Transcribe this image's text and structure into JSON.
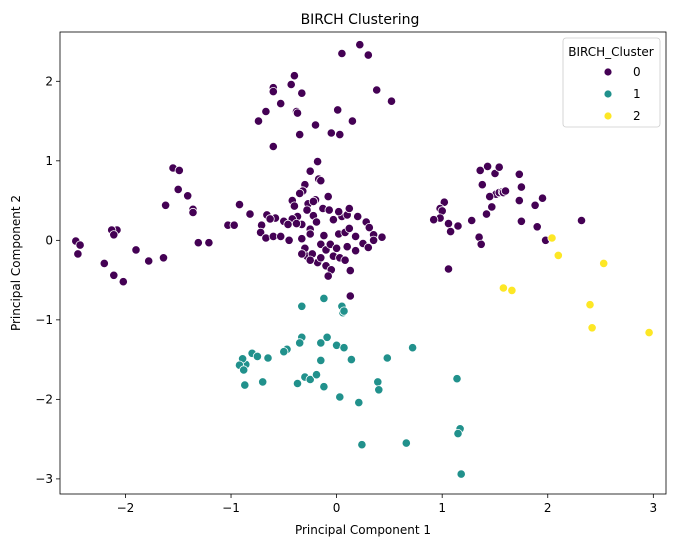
{
  "chart_data": {
    "type": "scatter",
    "title": "BIRCH Clustering",
    "xlabel": "Principal Component 1",
    "ylabel": "Principal Component 2",
    "xlim": [
      -2.62,
      3.12
    ],
    "ylim": [
      -3.19,
      2.62
    ],
    "xticks": [
      -2,
      -1,
      0,
      1,
      2,
      3
    ],
    "yticks": [
      -3,
      -2,
      -1,
      0,
      1,
      2
    ],
    "grid": false,
    "legend": {
      "title": "BIRCH_Cluster",
      "placement": "top-right"
    },
    "series": [
      {
        "name": "0",
        "color": "#440154",
        "points": [
          [
            0.22,
            2.46
          ],
          [
            0.05,
            2.35
          ],
          [
            0.3,
            2.33
          ],
          [
            -0.4,
            2.07
          ],
          [
            -0.43,
            1.96
          ],
          [
            0.38,
            1.89
          ],
          [
            -0.33,
            1.85
          ],
          [
            0.52,
            1.75
          ],
          [
            -0.6,
            1.92
          ],
          [
            -0.6,
            1.87
          ],
          [
            -0.53,
            1.72
          ],
          [
            -0.67,
            1.62
          ],
          [
            -0.38,
            1.62
          ],
          [
            -0.37,
            1.6
          ],
          [
            0.01,
            1.64
          ],
          [
            -0.74,
            1.5
          ],
          [
            0.15,
            1.5
          ],
          [
            -0.2,
            1.45
          ],
          [
            -0.35,
            1.33
          ],
          [
            -0.05,
            1.35
          ],
          [
            0.03,
            1.33
          ],
          [
            -0.6,
            1.18
          ],
          [
            -0.18,
            0.99
          ],
          [
            -0.25,
            0.87
          ],
          [
            -0.17,
            0.77
          ],
          [
            -0.15,
            0.75
          ],
          [
            -0.3,
            0.7
          ],
          [
            -0.32,
            0.62
          ],
          [
            -0.42,
            0.5
          ],
          [
            -0.27,
            0.46
          ],
          [
            -0.2,
            0.51
          ],
          [
            -0.08,
            0.55
          ],
          [
            -0.28,
            0.38
          ],
          [
            -0.13,
            0.4
          ],
          [
            -0.07,
            0.38
          ],
          [
            -0.37,
            0.3
          ],
          [
            -0.42,
            0.27
          ],
          [
            -0.22,
            0.31
          ],
          [
            -0.58,
            0.28
          ],
          [
            -0.5,
            0.24
          ],
          [
            -0.46,
            0.2
          ],
          [
            -0.33,
            0.2
          ],
          [
            -0.25,
            0.14
          ],
          [
            -0.19,
            0.23
          ],
          [
            -0.03,
            0.26
          ],
          [
            0.05,
            0.3
          ],
          [
            0.1,
            0.32
          ],
          [
            0.2,
            0.3
          ],
          [
            0.28,
            0.23
          ],
          [
            0.31,
            0.16
          ],
          [
            0.35,
            0.07
          ],
          [
            0.43,
            0.04
          ],
          [
            -0.66,
            0.32
          ],
          [
            -0.63,
            0.27
          ],
          [
            -0.71,
            0.19
          ],
          [
            -0.72,
            0.1
          ],
          [
            -0.67,
            0.03
          ],
          [
            -0.6,
            0.05
          ],
          [
            -0.53,
            0.05
          ],
          [
            -0.45,
            0.0
          ],
          [
            -0.33,
            0.02
          ],
          [
            -0.25,
            0.08
          ],
          [
            -0.15,
            -0.05
          ],
          [
            -0.12,
            0.06
          ],
          [
            0.02,
            0.08
          ],
          [
            0.08,
            0.1
          ],
          [
            0.12,
            0.15
          ],
          [
            0.18,
            0.05
          ],
          [
            0.25,
            -0.04
          ],
          [
            0.3,
            -0.09
          ],
          [
            0.35,
            0.0
          ],
          [
            -0.3,
            -0.1
          ],
          [
            -0.28,
            -0.2
          ],
          [
            -0.33,
            -0.17
          ],
          [
            -0.23,
            -0.17
          ],
          [
            -0.18,
            -0.28
          ],
          [
            -0.25,
            -0.25
          ],
          [
            -0.15,
            -0.22
          ],
          [
            -0.1,
            -0.12
          ],
          [
            -0.06,
            -0.05
          ],
          [
            0.0,
            -0.1
          ],
          [
            -0.03,
            -0.2
          ],
          [
            0.03,
            -0.22
          ],
          [
            0.08,
            -0.25
          ],
          [
            -0.1,
            -0.32
          ],
          [
            -0.05,
            -0.37
          ],
          [
            -0.08,
            -0.45
          ],
          [
            0.13,
            -0.38
          ],
          [
            0.18,
            -0.13
          ],
          [
            0.1,
            -0.08
          ],
          [
            -0.82,
            0.33
          ],
          [
            -0.92,
            0.45
          ],
          [
            -0.4,
            0.43
          ],
          [
            -0.35,
            0.59
          ],
          [
            -0.22,
            0.49
          ],
          [
            -0.38,
            0.21
          ],
          [
            0.12,
            0.4
          ],
          [
            0.02,
            0.36
          ],
          [
            -1.55,
            0.91
          ],
          [
            -1.49,
            0.88
          ],
          [
            -1.5,
            0.64
          ],
          [
            -1.41,
            0.56
          ],
          [
            -1.62,
            0.44
          ],
          [
            -1.36,
            0.39
          ],
          [
            -1.36,
            0.35
          ],
          [
            -1.31,
            -0.03
          ],
          [
            -1.21,
            -0.03
          ],
          [
            -1.03,
            0.19
          ],
          [
            -0.97,
            0.19
          ],
          [
            -2.47,
            -0.01
          ],
          [
            -2.43,
            -0.06
          ],
          [
            -2.45,
            -0.17
          ],
          [
            -2.12,
            0.1
          ],
          [
            -2.08,
            0.13
          ],
          [
            -2.13,
            0.13
          ],
          [
            -2.11,
            0.07
          ],
          [
            -2.2,
            -0.29
          ],
          [
            -2.11,
            -0.44
          ],
          [
            -2.02,
            -0.52
          ],
          [
            -1.9,
            -0.12
          ],
          [
            -1.78,
            -0.26
          ],
          [
            -1.64,
            -0.22
          ],
          [
            0.13,
            -0.7
          ],
          [
            1.43,
            0.93
          ],
          [
            1.5,
            0.84
          ],
          [
            1.54,
            0.92
          ],
          [
            1.36,
            0.88
          ],
          [
            1.38,
            0.7
          ],
          [
            1.51,
            0.58
          ],
          [
            1.54,
            0.6
          ],
          [
            1.57,
            0.61
          ],
          [
            1.73,
            0.83
          ],
          [
            1.75,
            0.67
          ],
          [
            1.73,
            0.5
          ],
          [
            1.58,
            0.6
          ],
          [
            1.45,
            0.55
          ],
          [
            1.6,
            0.62
          ],
          [
            1.88,
            0.44
          ],
          [
            1.95,
            0.53
          ],
          [
            1.02,
            0.48
          ],
          [
            0.98,
            0.4
          ],
          [
            1.0,
            0.37
          ],
          [
            0.98,
            0.28
          ],
          [
            0.92,
            0.26
          ],
          [
            1.06,
            0.21
          ],
          [
            1.08,
            0.11
          ],
          [
            1.15,
            0.18
          ],
          [
            1.28,
            0.25
          ],
          [
            1.42,
            0.33
          ],
          [
            1.47,
            0.42
          ],
          [
            1.75,
            0.24
          ],
          [
            1.9,
            0.17
          ],
          [
            1.98,
            0.0
          ],
          [
            1.35,
            0.04
          ],
          [
            1.37,
            -0.05
          ],
          [
            1.06,
            -0.36
          ],
          [
            2.32,
            0.25
          ]
        ]
      },
      {
        "name": "1",
        "color": "#21918c",
        "points": [
          [
            -0.12,
            -0.73
          ],
          [
            -0.33,
            -0.83
          ],
          [
            0.05,
            -0.83
          ],
          [
            0.06,
            -0.91
          ],
          [
            -0.33,
            -1.22
          ],
          [
            -0.09,
            -1.22
          ],
          [
            -0.35,
            -1.29
          ],
          [
            -0.47,
            -1.37
          ],
          [
            -0.5,
            -1.4
          ],
          [
            -0.8,
            -1.42
          ],
          [
            -0.75,
            -1.46
          ],
          [
            -0.65,
            -1.48
          ],
          [
            -0.86,
            -1.56
          ],
          [
            -0.89,
            -1.49
          ],
          [
            -0.92,
            -1.57
          ],
          [
            -0.88,
            -1.63
          ],
          [
            -0.87,
            -1.82
          ],
          [
            -0.7,
            -1.78
          ],
          [
            -0.37,
            -1.8
          ],
          [
            -0.3,
            -1.72
          ],
          [
            -0.25,
            -1.75
          ],
          [
            -0.19,
            -1.69
          ],
          [
            -0.15,
            -1.51
          ],
          [
            -0.15,
            -1.29
          ],
          [
            0.0,
            -1.32
          ],
          [
            0.07,
            -1.35
          ],
          [
            0.14,
            -1.5
          ],
          [
            0.39,
            -1.78
          ],
          [
            0.4,
            -1.88
          ],
          [
            -0.12,
            -1.84
          ],
          [
            0.03,
            -1.97
          ],
          [
            0.21,
            -2.04
          ],
          [
            0.48,
            -1.48
          ],
          [
            0.72,
            -1.35
          ],
          [
            1.14,
            -1.74
          ],
          [
            1.17,
            -2.37
          ],
          [
            1.15,
            -2.43
          ],
          [
            0.24,
            -2.57
          ],
          [
            0.66,
            -2.55
          ],
          [
            1.18,
            -2.94
          ],
          [
            0.07,
            -0.89
          ]
        ]
      },
      {
        "name": "2",
        "color": "#fde725",
        "points": [
          [
            2.04,
            0.03
          ],
          [
            2.1,
            -0.19
          ],
          [
            2.53,
            -0.29
          ],
          [
            1.58,
            -0.6
          ],
          [
            1.66,
            -0.63
          ],
          [
            2.4,
            -0.81
          ],
          [
            2.42,
            -1.1
          ],
          [
            2.96,
            -1.16
          ]
        ]
      }
    ]
  }
}
